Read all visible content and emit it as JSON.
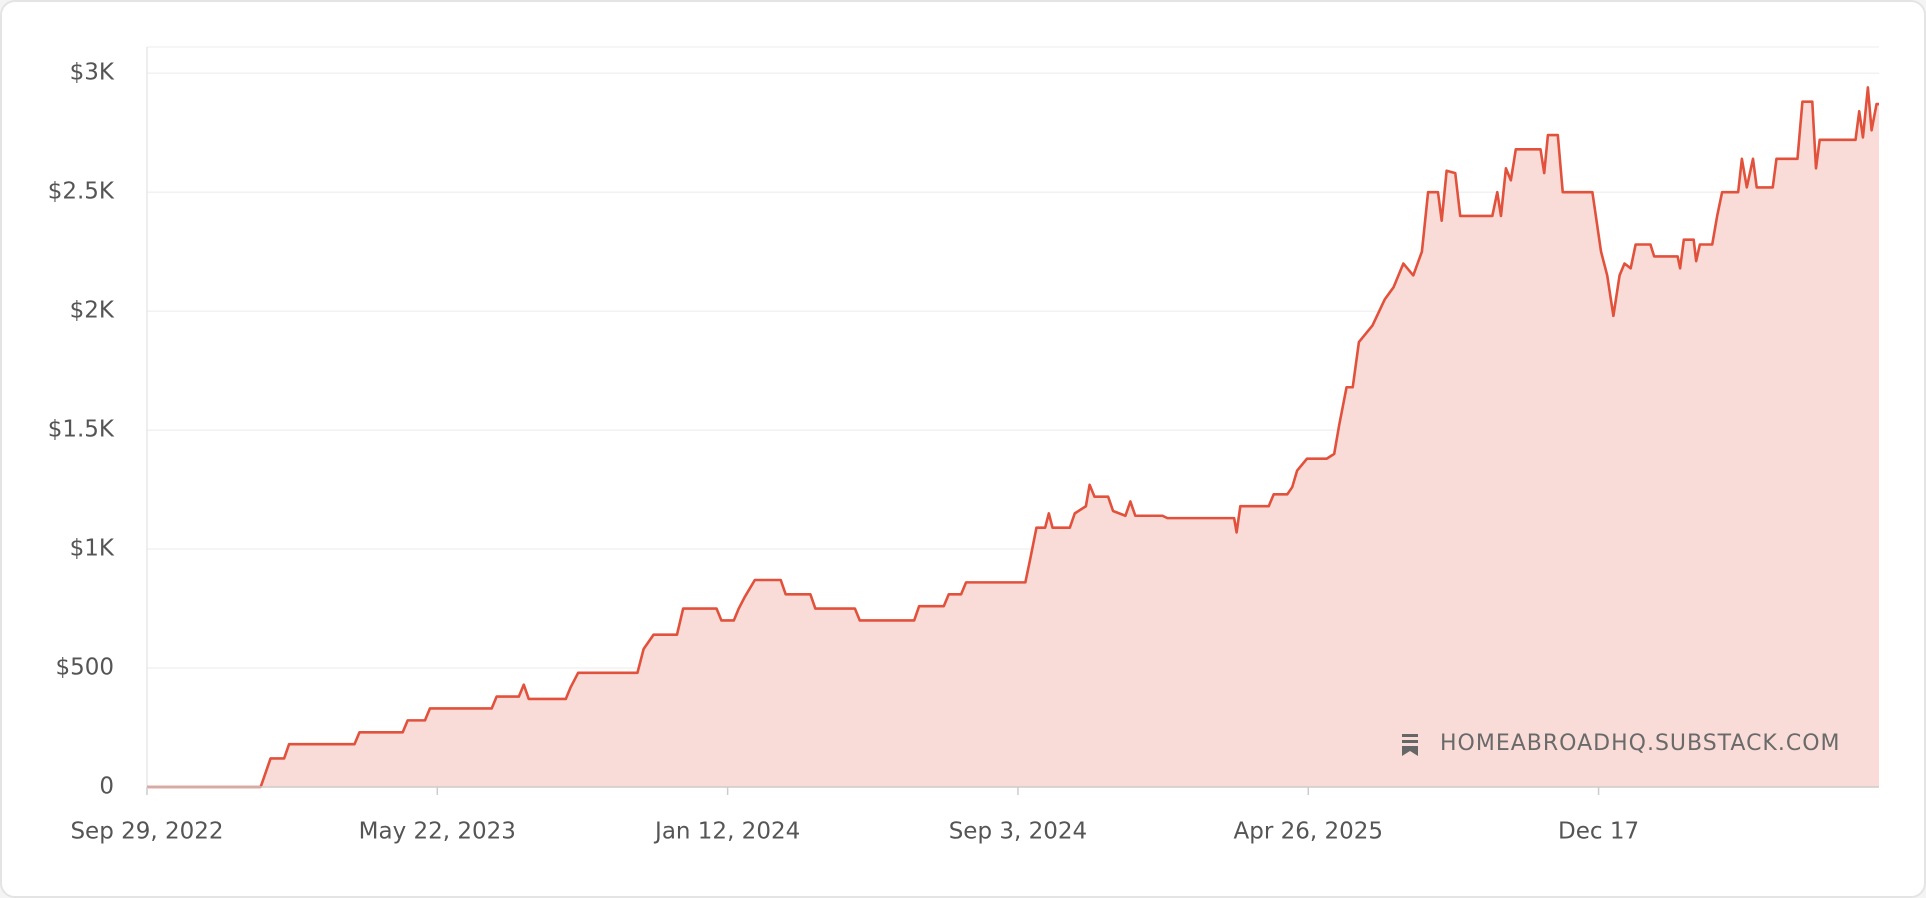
{
  "chart_data": {
    "type": "line",
    "watermark": "HOMEABROADHQ.SUBSTACK.COM",
    "x": [
      "2022-09-29",
      "2022-12-30",
      "2023-01-07",
      "2023-01-18",
      "2023-01-22",
      "2023-03-16",
      "2023-03-20",
      "2023-04-24",
      "2023-04-28",
      "2023-05-12",
      "2023-05-16",
      "2023-07-05",
      "2023-07-09",
      "2023-07-27",
      "2023-07-31",
      "2023-08-04",
      "2023-09-03",
      "2023-09-07",
      "2023-09-13",
      "2023-10-31",
      "2023-11-05",
      "2023-11-13",
      "2023-12-02",
      "2023-12-07",
      "2024-01-03",
      "2024-01-07",
      "2024-01-17",
      "2024-01-21",
      "2024-01-26",
      "2024-02-03",
      "2024-02-24",
      "2024-02-28",
      "2024-03-19",
      "2024-03-23",
      "2024-04-24",
      "2024-04-28",
      "2024-06-11",
      "2024-06-15",
      "2024-07-05",
      "2024-07-09",
      "2024-07-19",
      "2024-07-23",
      "2024-09-09",
      "2024-09-13",
      "2024-09-18",
      "2024-09-25",
      "2024-09-28",
      "2024-10-01",
      "2024-10-15",
      "2024-10-19",
      "2024-10-28",
      "2024-10-31",
      "2024-11-04",
      "2024-11-15",
      "2024-11-19",
      "2024-11-29",
      "2024-12-03",
      "2024-12-07",
      "2024-12-29",
      "2025-01-02",
      "2025-02-25",
      "2025-02-27",
      "2025-03-02",
      "2025-03-25",
      "2025-03-29",
      "2025-04-09",
      "2025-04-13",
      "2025-04-17",
      "2025-04-25",
      "2025-05-11",
      "2025-05-17",
      "2025-05-21",
      "2025-05-27",
      "2025-06-01",
      "2025-06-06",
      "2025-06-17",
      "2025-06-27",
      "2025-07-04",
      "2025-07-12",
      "2025-07-20",
      "2025-07-27",
      "2025-08-01",
      "2025-08-09",
      "2025-08-12",
      "2025-08-16",
      "2025-08-23",
      "2025-08-27",
      "2025-09-22",
      "2025-09-26",
      "2025-09-29",
      "2025-10-03",
      "2025-10-07",
      "2025-10-11",
      "2025-10-31",
      "2025-11-03",
      "2025-11-06",
      "2025-11-14",
      "2025-11-18",
      "2025-12-12",
      "2025-12-19",
      "2025-12-24",
      "2025-12-29",
      "2026-01-03",
      "2026-01-07",
      "2026-01-12",
      "2026-01-16",
      "2026-01-28",
      "2026-01-31",
      "2026-02-19",
      "2026-02-21",
      "2026-02-24",
      "2026-03-04",
      "2026-03-06",
      "2026-03-09",
      "2026-03-19",
      "2026-03-23",
      "2026-03-27",
      "2026-04-09",
      "2026-04-12",
      "2026-04-16",
      "2026-04-21",
      "2026-04-24",
      "2026-05-07",
      "2026-05-10",
      "2026-05-27",
      "2026-05-31",
      "2026-06-08",
      "2026-06-11",
      "2026-06-14",
      "2026-07-13",
      "2026-07-16",
      "2026-07-19",
      "2026-07-23",
      "2026-07-26",
      "2026-07-30",
      "2026-08-01"
    ],
    "values": [
      0,
      0,
      120,
      120,
      180,
      180,
      230,
      230,
      280,
      280,
      330,
      330,
      380,
      380,
      430,
      370,
      370,
      420,
      480,
      480,
      580,
      640,
      640,
      750,
      750,
      700,
      700,
      750,
      800,
      870,
      870,
      810,
      810,
      750,
      750,
      700,
      700,
      760,
      760,
      810,
      810,
      860,
      860,
      960,
      1090,
      1090,
      1150,
      1090,
      1090,
      1150,
      1180,
      1270,
      1220,
      1220,
      1160,
      1140,
      1200,
      1140,
      1140,
      1130,
      1130,
      1070,
      1180,
      1180,
      1230,
      1230,
      1260,
      1330,
      1380,
      1380,
      1400,
      1520,
      1680,
      1680,
      1870,
      1940,
      2050,
      2100,
      2200,
      2150,
      2250,
      2500,
      2500,
      2380,
      2590,
      2580,
      2400,
      2400,
      2500,
      2400,
      2600,
      2550,
      2680,
      2680,
      2580,
      2740,
      2740,
      2500,
      2500,
      2250,
      2150,
      1980,
      2150,
      2200,
      2180,
      2280,
      2280,
      2230,
      2230,
      2180,
      2300,
      2300,
      2210,
      2280,
      2280,
      2400,
      2500,
      2500,
      2640,
      2520,
      2640,
      2520,
      2520,
      2640,
      2640,
      2880,
      2880,
      2600,
      2720,
      2720,
      2840,
      2730,
      2940,
      2760,
      2870,
      2870
    ],
    "color": "#e2513c",
    "fill": "#f9dcd7",
    "xlim": [
      "2022-09-29",
      "2026-08-01"
    ],
    "xticks": [
      {
        "value": "2022-09-29",
        "label": "Sep 29, 2022"
      },
      {
        "value": "2023-05-22",
        "label": "May 22, 2023"
      },
      {
        "value": "2024-01-12",
        "label": "Jan 12, 2024"
      },
      {
        "value": "2024-09-03",
        "label": "Sep 3, 2024"
      },
      {
        "value": "2025-04-26",
        "label": "Apr 26, 2025"
      },
      {
        "value": "2025-12-17",
        "label": "Dec 17"
      }
    ],
    "ylim": [
      0,
      3110
    ],
    "yticks": [
      0,
      {
        "value": 500,
        "label": "$500"
      },
      {
        "value": 1000,
        "label": "$1K"
      },
      {
        "value": 1500,
        "label": "$1.5K"
      },
      {
        "value": 2000,
        "label": "$2K"
      },
      {
        "value": 2500,
        "label": "$2.5K"
      },
      {
        "value": 3000,
        "label": "$3K"
      }
    ],
    "grid": true
  }
}
